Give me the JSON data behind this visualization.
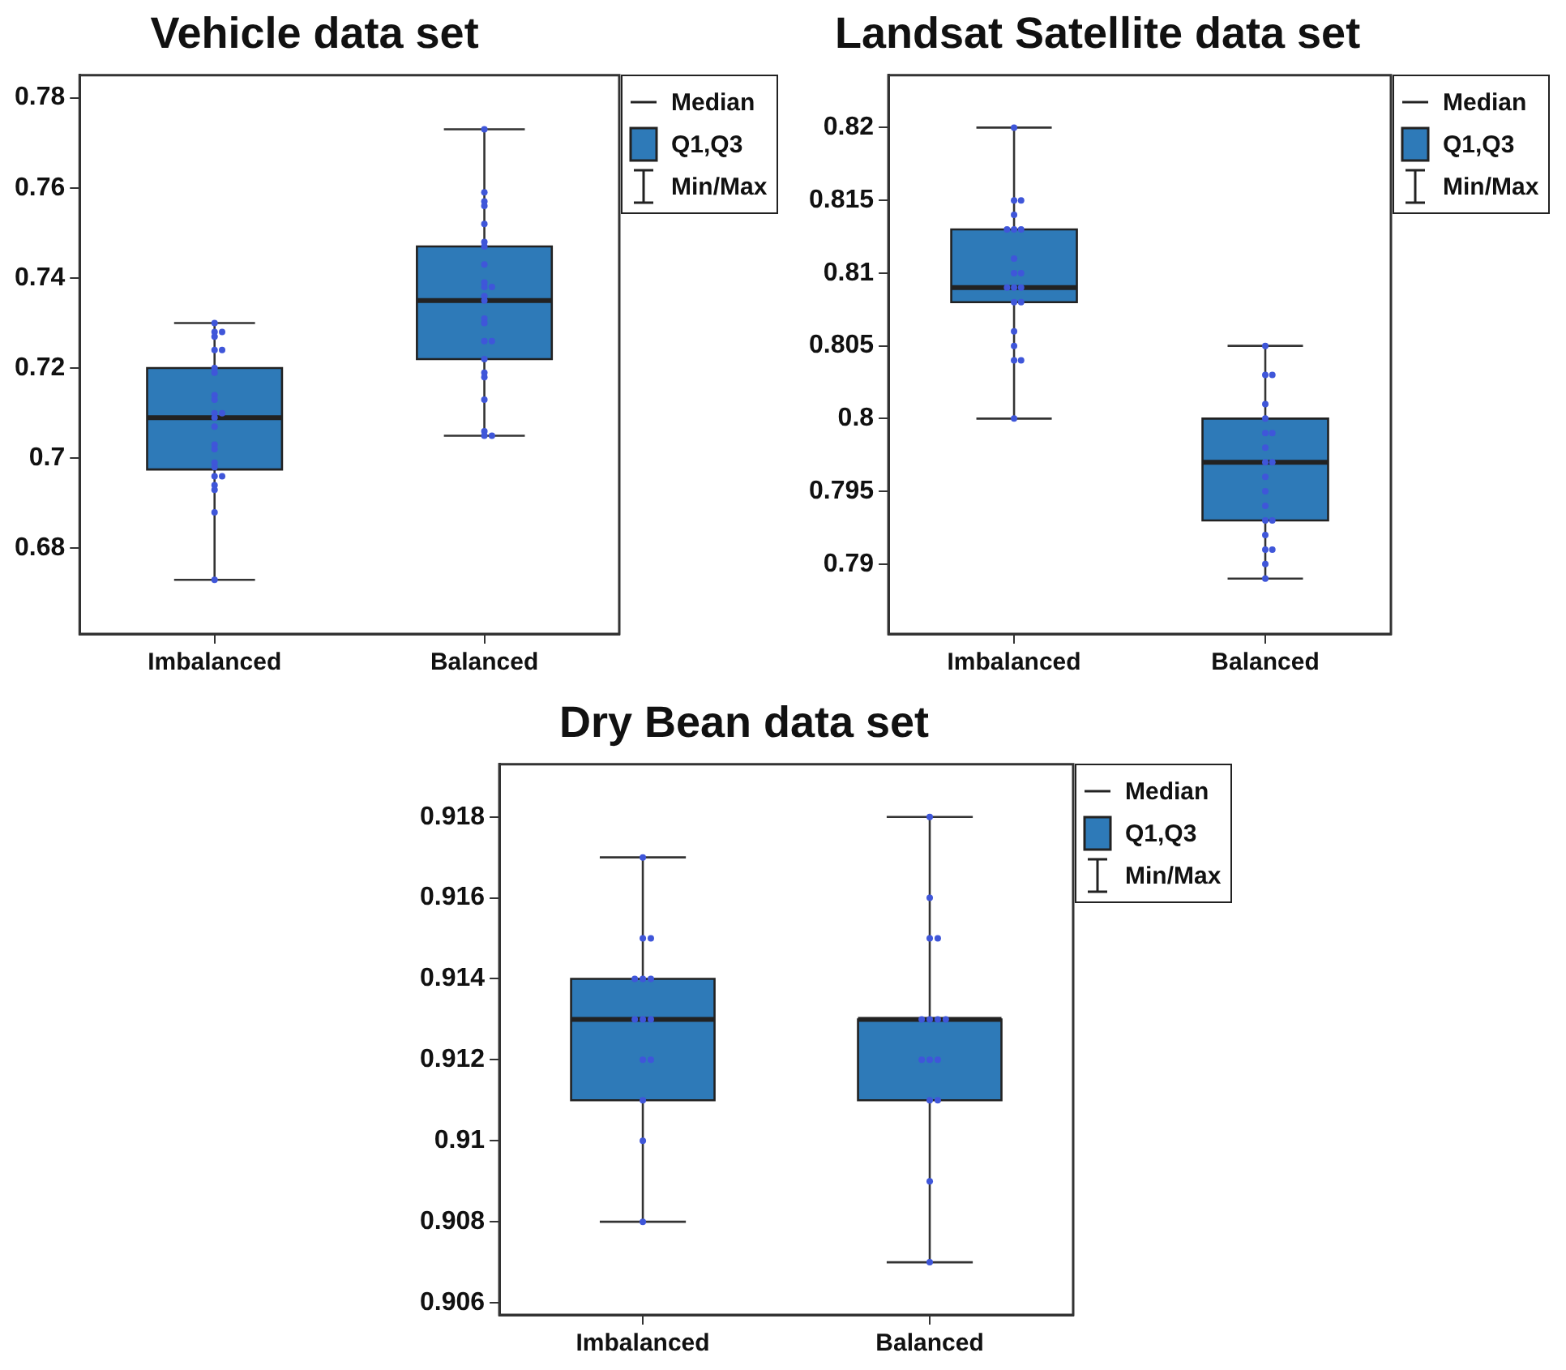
{
  "chart_data": [
    {
      "type": "box",
      "title": "Vehicle data set",
      "categories": [
        "Imbalanced",
        "Balanced"
      ],
      "color": "#2e7ab8",
      "ylim": [
        0.661,
        0.785
      ],
      "yticks": [
        0.68,
        0.7,
        0.72,
        0.74,
        0.76,
        0.78
      ],
      "grid": false,
      "annotations": [
        "Median",
        "Q1,Q3",
        "Min/Max"
      ],
      "boxes": [
        {
          "low": 0.673,
          "q1": 0.6975,
          "median": 0.709,
          "q3": 0.72,
          "high": 0.73
        },
        {
          "low": 0.705,
          "q1": 0.722,
          "median": 0.735,
          "q3": 0.747,
          "high": 0.773
        }
      ],
      "series": [
        {
          "type": "scatter",
          "marker": "circle",
          "color": "#3f56d9",
          "x": [
            "Imbalanced",
            "Imbalanced",
            "Imbalanced",
            "Imbalanced",
            "Imbalanced",
            "Imbalanced",
            "Imbalanced",
            "Imbalanced",
            "Imbalanced",
            "Imbalanced",
            "Imbalanced",
            "Imbalanced",
            "Imbalanced",
            "Imbalanced",
            "Imbalanced",
            "Imbalanced",
            "Imbalanced",
            "Imbalanced",
            "Imbalanced",
            "Imbalanced",
            "Imbalanced",
            "Imbalanced",
            "Imbalanced",
            "Imbalanced",
            "Balanced",
            "Balanced",
            "Balanced",
            "Balanced",
            "Balanced",
            "Balanced",
            "Balanced",
            "Balanced",
            "Balanced",
            "Balanced",
            "Balanced",
            "Balanced",
            "Balanced",
            "Balanced",
            "Balanced",
            "Balanced",
            "Balanced",
            "Balanced",
            "Balanced",
            "Balanced",
            "Balanced",
            "Balanced",
            "Balanced",
            "Balanced"
          ],
          "values": [
            0.73,
            0.728,
            0.728,
            0.727,
            0.724,
            0.724,
            0.72,
            0.719,
            0.714,
            0.713,
            0.71,
            0.71,
            0.709,
            0.707,
            0.703,
            0.702,
            0.699,
            0.698,
            0.696,
            0.696,
            0.694,
            0.693,
            0.688,
            0.673,
            0.773,
            0.759,
            0.757,
            0.756,
            0.752,
            0.748,
            0.747,
            0.743,
            0.739,
            0.738,
            0.738,
            0.736,
            0.735,
            0.731,
            0.73,
            0.726,
            0.726,
            0.722,
            0.719,
            0.718,
            0.713,
            0.706,
            0.705,
            0.705
          ]
        }
      ]
    },
    {
      "type": "box",
      "title": "Landsat Satellite data set",
      "categories": [
        "Imbalanced",
        "Balanced"
      ],
      "color": "#2e7ab8",
      "ylim": [
        0.7852,
        0.8236
      ],
      "yticks": [
        0.79,
        0.795,
        0.8,
        0.805,
        0.81,
        0.815,
        0.82
      ],
      "grid": false,
      "annotations": [
        "Median",
        "Q1,Q3",
        "Min/Max"
      ],
      "boxes": [
        {
          "low": 0.8,
          "q1": 0.808,
          "median": 0.809,
          "q3": 0.813,
          "high": 0.82
        },
        {
          "low": 0.789,
          "q1": 0.793,
          "median": 0.797,
          "q3": 0.8,
          "high": 0.805
        }
      ],
      "series": [
        {
          "type": "scatter",
          "marker": "circle",
          "color": "#3f56d9",
          "x": [
            "Imbalanced",
            "Imbalanced",
            "Imbalanced",
            "Imbalanced",
            "Imbalanced",
            "Imbalanced",
            "Imbalanced",
            "Imbalanced",
            "Imbalanced",
            "Imbalanced",
            "Imbalanced",
            "Imbalanced",
            "Imbalanced",
            "Imbalanced",
            "Imbalanced",
            "Imbalanced",
            "Imbalanced",
            "Imbalanced",
            "Imbalanced",
            "Imbalanced",
            "Balanced",
            "Balanced",
            "Balanced",
            "Balanced",
            "Balanced",
            "Balanced",
            "Balanced",
            "Balanced",
            "Balanced",
            "Balanced",
            "Balanced",
            "Balanced",
            "Balanced",
            "Balanced",
            "Balanced",
            "Balanced",
            "Balanced",
            "Balanced",
            "Balanced",
            "Balanced"
          ],
          "values": [
            0.82,
            0.815,
            0.815,
            0.814,
            0.813,
            0.813,
            0.813,
            0.811,
            0.81,
            0.81,
            0.809,
            0.809,
            0.809,
            0.808,
            0.808,
            0.806,
            0.805,
            0.804,
            0.804,
            0.8,
            0.805,
            0.803,
            0.803,
            0.801,
            0.8,
            0.799,
            0.799,
            0.798,
            0.797,
            0.797,
            0.796,
            0.795,
            0.794,
            0.793,
            0.793,
            0.792,
            0.791,
            0.791,
            0.79,
            0.789
          ]
        }
      ]
    },
    {
      "type": "box",
      "title": "Dry Bean data set",
      "categories": [
        "Imbalanced",
        "Balanced"
      ],
      "color": "#2e7ab8",
      "ylim": [
        0.9057,
        0.9193
      ],
      "yticks": [
        0.906,
        0.908,
        0.91,
        0.912,
        0.914,
        0.916,
        0.918
      ],
      "grid": false,
      "annotations": [
        "Median",
        "Q1,Q3",
        "Min/Max"
      ],
      "boxes": [
        {
          "low": 0.908,
          "q1": 0.911,
          "median": 0.913,
          "q3": 0.914,
          "high": 0.917
        },
        {
          "low": 0.907,
          "q1": 0.911,
          "median": 0.913,
          "q3": 0.913,
          "high": 0.918
        }
      ],
      "series": [
        {
          "type": "scatter",
          "marker": "circle",
          "color": "#3f56d9",
          "x": [
            "Imbalanced",
            "Imbalanced",
            "Imbalanced",
            "Imbalanced",
            "Imbalanced",
            "Imbalanced",
            "Imbalanced",
            "Imbalanced",
            "Imbalanced",
            "Imbalanced",
            "Imbalanced",
            "Imbalanced",
            "Imbalanced",
            "Imbalanced",
            "Balanced",
            "Balanced",
            "Balanced",
            "Balanced",
            "Balanced",
            "Balanced",
            "Balanced",
            "Balanced",
            "Balanced",
            "Balanced",
            "Balanced",
            "Balanced",
            "Balanced",
            "Balanced",
            "Balanced"
          ],
          "values": [
            0.917,
            0.915,
            0.915,
            0.914,
            0.914,
            0.914,
            0.913,
            0.913,
            0.913,
            0.912,
            0.912,
            0.911,
            0.91,
            0.908,
            0.918,
            0.916,
            0.915,
            0.915,
            0.913,
            0.913,
            0.913,
            0.913,
            0.912,
            0.912,
            0.912,
            0.911,
            0.911,
            0.909,
            0.907
          ]
        }
      ]
    }
  ]
}
